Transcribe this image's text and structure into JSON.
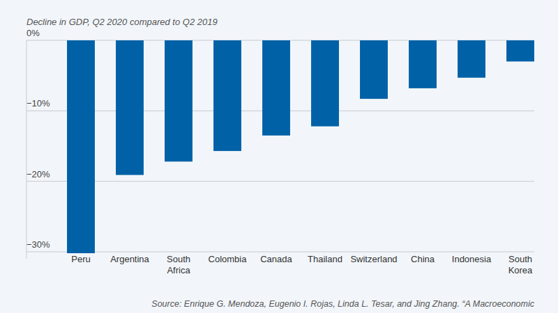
{
  "chart_data": {
    "type": "bar",
    "title": "Decline in GDP, Q2 2020 compared to Q2 2019",
    "categories": [
      "Peru",
      "Argentina",
      "South Africa",
      "Colombia",
      "Canada",
      "Thailand",
      "Switzerland",
      "China",
      "Indonesia",
      "South Korea"
    ],
    "values": [
      -30.2,
      -19.1,
      -17.2,
      -15.7,
      -13.5,
      -12.2,
      -8.3,
      -6.8,
      -5.3,
      -3.0
    ],
    "color": "#0061a7",
    "ylim": [
      -31,
      0
    ],
    "yticks": [
      {
        "value": 0,
        "label": "0%"
      },
      {
        "value": -10,
        "label": "−10%"
      },
      {
        "value": -20,
        "label": "−20%"
      },
      {
        "value": -30,
        "label": "−30%"
      }
    ],
    "grid": true,
    "source": "Source: Enrique G. Mendoza, Eugenio I. Rojas, Linda L. Tesar, and Jing Zhang. “A Macroeconomic"
  }
}
